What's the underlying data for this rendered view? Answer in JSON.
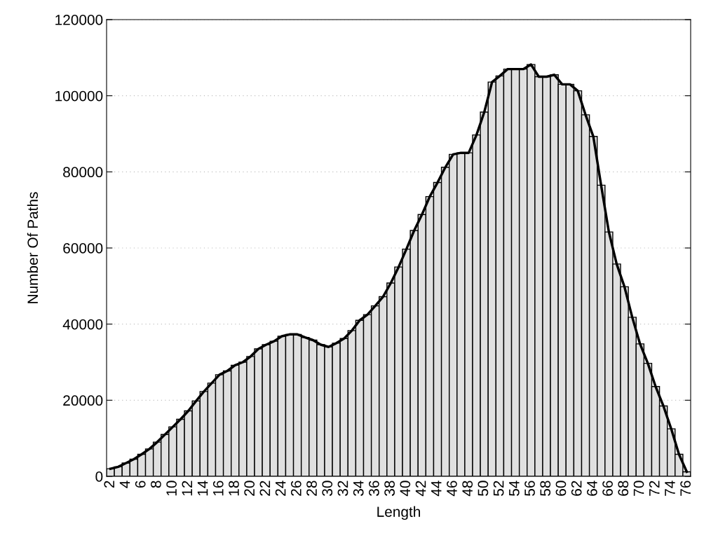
{
  "chart_data": {
    "type": "bar",
    "xlabel": "Length",
    "ylabel": "Number Of Paths",
    "categories": [
      "2",
      null,
      "4",
      null,
      "6",
      null,
      "8",
      null,
      "10",
      null,
      "12",
      null,
      "14",
      null,
      "16",
      null,
      "18",
      null,
      "20",
      null,
      "22",
      null,
      "24",
      null,
      "26",
      null,
      "28",
      null,
      "30",
      null,
      "32",
      null,
      "34",
      null,
      "36",
      null,
      "38",
      null,
      "40",
      null,
      "42",
      null,
      "44",
      null,
      "46",
      null,
      "48",
      null,
      "50",
      null,
      "52",
      null,
      "54",
      null,
      "56",
      null,
      "58",
      null,
      "60",
      null,
      "62",
      null,
      "64",
      null,
      "66",
      null,
      "68",
      null,
      "70",
      null,
      "72",
      null,
      "74",
      null,
      "76"
    ],
    "series": [
      {
        "color": "#e0e0e0",
        "values": [
          2000,
          2500,
          3500,
          4500,
          5800,
          7200,
          9000,
          11000,
          13000,
          15000,
          17200,
          19800,
          22300,
          24500,
          26700,
          27700,
          29200,
          30000,
          31500,
          33500,
          34600,
          35500,
          36800,
          37300,
          37300,
          36500,
          35800,
          34600,
          34000,
          35000,
          36200,
          38300,
          41000,
          42500,
          44800,
          47200,
          50800,
          55000,
          59700,
          64600,
          68800,
          73500,
          77200,
          81200,
          84600,
          85000,
          85000,
          89700,
          95700,
          103600,
          105200,
          107000,
          107000,
          107000,
          108200,
          105000,
          105000,
          105500,
          103000,
          103000,
          101300,
          95000,
          89300,
          76500,
          64200,
          55800,
          49800,
          41800,
          34800,
          29700,
          23600,
          18500,
          12500,
          5800,
          1200
        ]
      },
      {
        "type": "line",
        "color": "#000000",
        "values": [
          2000,
          2500,
          3500,
          4500,
          5800,
          7200,
          9000,
          11000,
          13000,
          15000,
          17200,
          19800,
          22300,
          24500,
          26700,
          27700,
          29200,
          30000,
          31500,
          33500,
          34600,
          35500,
          36800,
          37300,
          37300,
          36500,
          35800,
          34600,
          34000,
          35000,
          36200,
          38300,
          41000,
          42500,
          44800,
          47200,
          50800,
          55000,
          59700,
          64600,
          68800,
          73500,
          77200,
          81200,
          84600,
          85000,
          85000,
          89700,
          95700,
          103600,
          105200,
          107000,
          107000,
          107000,
          108200,
          105000,
          105000,
          105500,
          103000,
          103000,
          101300,
          95000,
          89300,
          76500,
          64200,
          55800,
          49800,
          41800,
          34800,
          29700,
          23600,
          18500,
          12500,
          5800,
          1200
        ]
      }
    ],
    "ylim": [
      0,
      120000
    ],
    "yticks": [
      0,
      20000,
      40000,
      60000,
      80000,
      100000,
      120000
    ],
    "grid": "y",
    "line_style": "solid",
    "marker": "none"
  }
}
